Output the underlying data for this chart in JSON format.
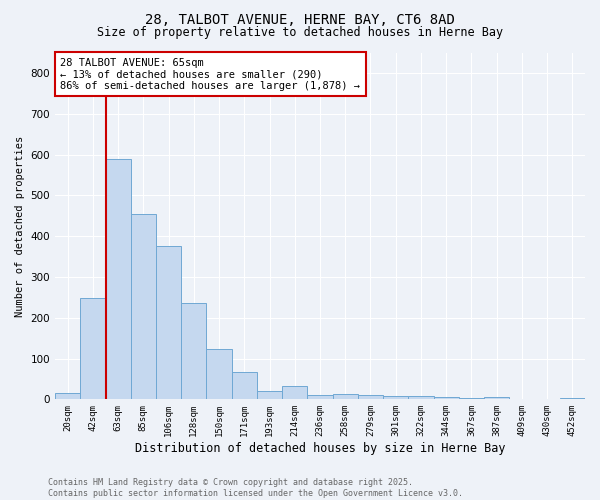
{
  "title_line1": "28, TALBOT AVENUE, HERNE BAY, CT6 8AD",
  "title_line2": "Size of property relative to detached houses in Herne Bay",
  "xlabel": "Distribution of detached houses by size in Herne Bay",
  "ylabel": "Number of detached properties",
  "categories": [
    "20sqm",
    "42sqm",
    "63sqm",
    "85sqm",
    "106sqm",
    "128sqm",
    "150sqm",
    "171sqm",
    "193sqm",
    "214sqm",
    "236sqm",
    "258sqm",
    "279sqm",
    "301sqm",
    "322sqm",
    "344sqm",
    "367sqm",
    "387sqm",
    "409sqm",
    "430sqm",
    "452sqm"
  ],
  "values": [
    15,
    248,
    590,
    453,
    377,
    235,
    123,
    68,
    20,
    32,
    10,
    12,
    10,
    8,
    8,
    5,
    3,
    5,
    0,
    0,
    3
  ],
  "bar_color": "#c5d8ef",
  "bar_edge_color": "#6fa8d4",
  "vline_x_index": 2,
  "vline_color": "#cc0000",
  "annotation_text": "28 TALBOT AVENUE: 65sqm\n← 13% of detached houses are smaller (290)\n86% of semi-detached houses are larger (1,878) →",
  "annotation_box_color": "#ffffff",
  "annotation_box_edge": "#cc0000",
  "ylim": [
    0,
    850
  ],
  "yticks": [
    0,
    100,
    200,
    300,
    400,
    500,
    600,
    700,
    800
  ],
  "bg_color": "#eef2f8",
  "grid_color": "#ffffff",
  "footnote": "Contains HM Land Registry data © Crown copyright and database right 2025.\nContains public sector information licensed under the Open Government Licence v3.0."
}
